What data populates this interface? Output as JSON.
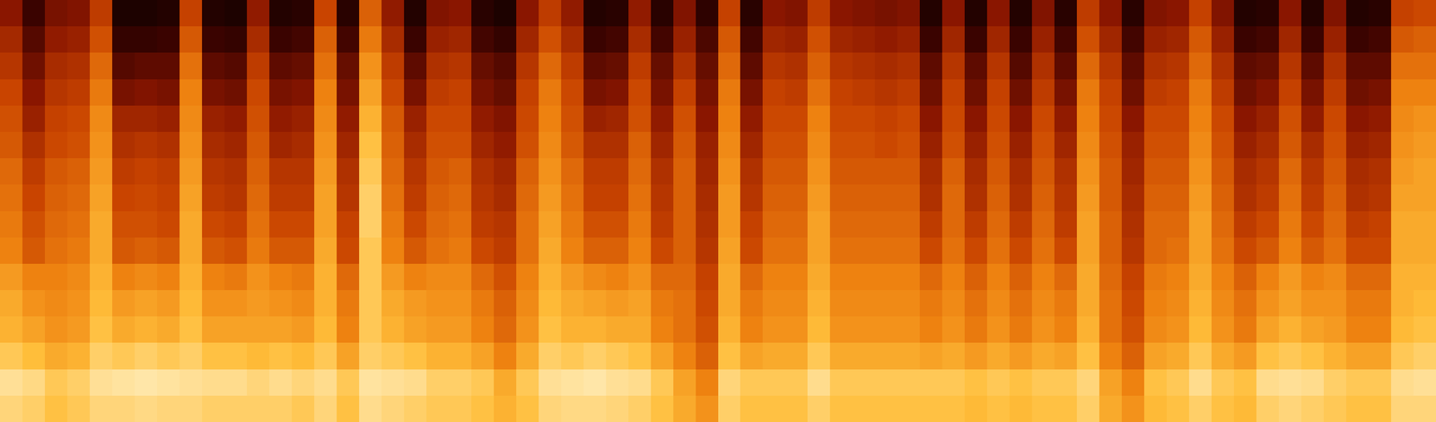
{
  "chart_data": {
    "type": "heatmap",
    "tick_labels": false,
    "zlim": [
      0,
      100
    ],
    "z": [
      [
        38,
        45,
        50,
        55,
        58,
        60,
        64,
        66,
        68,
        70,
        76,
        80,
        82,
        88,
        95,
        92
      ],
      [
        20,
        26,
        32,
        38,
        42,
        48,
        52,
        55,
        58,
        60,
        70,
        74,
        78,
        85,
        93,
        90
      ],
      [
        34,
        40,
        46,
        50,
        54,
        56,
        60,
        62,
        64,
        66,
        70,
        72,
        74,
        80,
        88,
        86
      ],
      [
        36,
        42,
        48,
        52,
        56,
        58,
        62,
        64,
        66,
        68,
        72,
        74,
        76,
        82,
        90,
        88
      ],
      [
        52,
        58,
        64,
        68,
        72,
        74,
        76,
        78,
        80,
        80,
        82,
        84,
        86,
        90,
        95,
        92
      ],
      [
        10,
        18,
        26,
        34,
        44,
        48,
        52,
        55,
        58,
        60,
        70,
        76,
        80,
        88,
        96,
        92
      ],
      [
        10,
        18,
        28,
        36,
        44,
        50,
        54,
        56,
        58,
        62,
        72,
        78,
        82,
        90,
        97,
        93
      ],
      [
        12,
        20,
        28,
        34,
        42,
        48,
        52,
        54,
        56,
        60,
        70,
        76,
        80,
        88,
        96,
        92
      ],
      [
        54,
        60,
        66,
        70,
        72,
        74,
        76,
        78,
        80,
        80,
        82,
        84,
        86,
        90,
        95,
        92
      ],
      [
        12,
        20,
        28,
        34,
        42,
        46,
        50,
        52,
        56,
        60,
        70,
        74,
        78,
        86,
        94,
        90
      ],
      [
        10,
        18,
        26,
        32,
        40,
        44,
        48,
        50,
        54,
        58,
        68,
        74,
        78,
        86,
        94,
        90
      ],
      [
        40,
        46,
        52,
        56,
        58,
        60,
        62,
        64,
        66,
        68,
        74,
        76,
        78,
        84,
        92,
        90
      ],
      [
        12,
        20,
        28,
        34,
        40,
        44,
        50,
        52,
        56,
        60,
        70,
        74,
        78,
        86,
        94,
        90
      ],
      [
        14,
        22,
        30,
        36,
        42,
        46,
        50,
        52,
        56,
        60,
        68,
        72,
        76,
        84,
        92,
        88
      ],
      [
        55,
        62,
        66,
        70,
        72,
        74,
        76,
        78,
        78,
        80,
        82,
        82,
        84,
        88,
        94,
        92
      ],
      [
        14,
        22,
        30,
        34,
        40,
        44,
        48,
        50,
        54,
        56,
        64,
        68,
        70,
        78,
        88,
        86
      ],
      [
        62,
        68,
        74,
        78,
        82,
        86,
        88,
        90,
        90,
        88,
        88,
        88,
        88,
        90,
        96,
        94
      ],
      [
        40,
        46,
        52,
        56,
        60,
        62,
        64,
        66,
        68,
        70,
        76,
        80,
        82,
        88,
        95,
        92
      ],
      [
        12,
        20,
        28,
        34,
        42,
        46,
        50,
        52,
        56,
        60,
        70,
        76,
        78,
        86,
        94,
        90
      ],
      [
        36,
        42,
        48,
        52,
        56,
        58,
        60,
        62,
        64,
        66,
        72,
        74,
        76,
        82,
        90,
        88
      ],
      [
        38,
        44,
        50,
        54,
        56,
        58,
        62,
        64,
        66,
        68,
        72,
        74,
        76,
        82,
        90,
        88
      ],
      [
        14,
        22,
        30,
        34,
        40,
        44,
        48,
        50,
        52,
        56,
        64,
        68,
        70,
        78,
        88,
        86
      ],
      [
        10,
        18,
        26,
        30,
        36,
        40,
        44,
        46,
        50,
        52,
        58,
        62,
        64,
        70,
        80,
        82
      ],
      [
        38,
        44,
        50,
        54,
        56,
        58,
        62,
        64,
        66,
        66,
        70,
        72,
        74,
        80,
        88,
        86
      ],
      [
        52,
        58,
        64,
        68,
        70,
        72,
        74,
        76,
        78,
        80,
        82,
        84,
        86,
        90,
        95,
        92
      ],
      [
        40,
        46,
        52,
        56,
        58,
        60,
        64,
        66,
        68,
        70,
        76,
        80,
        82,
        88,
        96,
        93
      ],
      [
        12,
        20,
        28,
        34,
        42,
        48,
        52,
        54,
        58,
        62,
        72,
        78,
        82,
        90,
        97,
        93
      ],
      [
        14,
        22,
        30,
        36,
        44,
        48,
        52,
        54,
        58,
        62,
        70,
        76,
        80,
        88,
        95,
        92
      ],
      [
        40,
        46,
        52,
        56,
        58,
        62,
        64,
        66,
        68,
        70,
        74,
        78,
        80,
        86,
        94,
        90
      ],
      [
        14,
        22,
        30,
        34,
        40,
        44,
        48,
        50,
        52,
        56,
        64,
        68,
        70,
        78,
        88,
        86
      ],
      [
        36,
        42,
        48,
        54,
        58,
        60,
        62,
        62,
        62,
        62,
        64,
        66,
        66,
        70,
        78,
        80
      ],
      [
        16,
        24,
        30,
        34,
        38,
        42,
        44,
        46,
        48,
        50,
        54,
        56,
        58,
        62,
        70,
        74
      ],
      [
        54,
        60,
        64,
        68,
        70,
        72,
        74,
        76,
        76,
        78,
        80,
        80,
        82,
        86,
        92,
        90
      ],
      [
        14,
        22,
        28,
        34,
        40,
        44,
        48,
        50,
        54,
        56,
        64,
        68,
        70,
        78,
        88,
        86
      ],
      [
        38,
        44,
        50,
        54,
        56,
        58,
        60,
        62,
        64,
        66,
        70,
        72,
        74,
        80,
        88,
        86
      ],
      [
        36,
        42,
        48,
        52,
        56,
        58,
        60,
        62,
        64,
        66,
        70,
        72,
        74,
        80,
        88,
        86
      ],
      [
        52,
        58,
        62,
        66,
        70,
        72,
        74,
        76,
        78,
        78,
        80,
        82,
        84,
        88,
        94,
        90
      ],
      [
        38,
        44,
        50,
        54,
        56,
        58,
        60,
        62,
        64,
        66,
        70,
        72,
        74,
        80,
        88,
        86
      ],
      [
        36,
        42,
        48,
        52,
        56,
        58,
        60,
        62,
        64,
        66,
        70,
        72,
        74,
        80,
        88,
        86
      ],
      [
        34,
        40,
        46,
        50,
        54,
        56,
        60,
        62,
        64,
        66,
        70,
        72,
        74,
        80,
        88,
        86
      ],
      [
        36,
        42,
        48,
        52,
        56,
        58,
        60,
        62,
        64,
        66,
        70,
        72,
        74,
        80,
        88,
        86
      ],
      [
        12,
        20,
        28,
        32,
        38,
        42,
        46,
        48,
        52,
        56,
        64,
        68,
        70,
        78,
        88,
        86
      ],
      [
        38,
        44,
        50,
        54,
        56,
        58,
        62,
        64,
        64,
        66,
        70,
        72,
        74,
        80,
        88,
        86
      ],
      [
        12,
        20,
        28,
        32,
        38,
        42,
        46,
        48,
        52,
        56,
        62,
        66,
        68,
        76,
        86,
        84
      ],
      [
        38,
        44,
        50,
        54,
        56,
        58,
        60,
        62,
        64,
        66,
        70,
        72,
        74,
        80,
        88,
        86
      ],
      [
        12,
        20,
        26,
        32,
        38,
        42,
        46,
        48,
        52,
        56,
        62,
        66,
        68,
        76,
        86,
        84
      ],
      [
        36,
        42,
        48,
        52,
        56,
        58,
        60,
        62,
        64,
        66,
        70,
        72,
        74,
        80,
        88,
        86
      ],
      [
        14,
        22,
        28,
        34,
        40,
        44,
        48,
        50,
        52,
        56,
        64,
        68,
        70,
        78,
        88,
        86
      ],
      [
        52,
        58,
        64,
        68,
        70,
        72,
        74,
        76,
        78,
        78,
        80,
        80,
        82,
        86,
        92,
        90
      ],
      [
        38,
        44,
        50,
        54,
        56,
        58,
        60,
        60,
        62,
        62,
        64,
        66,
        66,
        70,
        78,
        80
      ],
      [
        14,
        22,
        28,
        32,
        38,
        42,
        44,
        46,
        48,
        50,
        54,
        56,
        58,
        62,
        70,
        74
      ],
      [
        36,
        42,
        48,
        52,
        56,
        58,
        60,
        62,
        64,
        64,
        68,
        70,
        72,
        78,
        86,
        84
      ],
      [
        38,
        44,
        50,
        54,
        56,
        58,
        60,
        62,
        64,
        66,
        70,
        72,
        74,
        80,
        88,
        86
      ],
      [
        54,
        60,
        64,
        68,
        70,
        72,
        74,
        76,
        78,
        78,
        80,
        82,
        84,
        88,
        94,
        90
      ],
      [
        36,
        42,
        48,
        52,
        56,
        58,
        60,
        62,
        64,
        66,
        70,
        72,
        74,
        80,
        88,
        86
      ],
      [
        12,
        20,
        28,
        32,
        38,
        42,
        46,
        48,
        52,
        56,
        62,
        66,
        68,
        76,
        86,
        84
      ],
      [
        14,
        22,
        30,
        36,
        42,
        46,
        50,
        52,
        56,
        60,
        70,
        74,
        78,
        86,
        94,
        90
      ],
      [
        38,
        44,
        50,
        54,
        58,
        60,
        64,
        66,
        68,
        70,
        76,
        78,
        82,
        88,
        95,
        92
      ],
      [
        12,
        20,
        28,
        34,
        40,
        46,
        50,
        52,
        56,
        60,
        70,
        74,
        78,
        86,
        94,
        90
      ],
      [
        36,
        42,
        48,
        52,
        56,
        58,
        60,
        62,
        64,
        66,
        72,
        74,
        76,
        82,
        90,
        88
      ],
      [
        12,
        20,
        28,
        32,
        38,
        42,
        46,
        48,
        52,
        56,
        64,
        68,
        70,
        78,
        88,
        86
      ],
      [
        14,
        22,
        28,
        34,
        40,
        44,
        48,
        50,
        54,
        56,
        64,
        68,
        70,
        78,
        88,
        86
      ],
      [
        54,
        60,
        66,
        70,
        72,
        74,
        76,
        78,
        80,
        80,
        82,
        82,
        84,
        88,
        94,
        92
      ],
      [
        56,
        62,
        66,
        70,
        74,
        76,
        78,
        78,
        80,
        80,
        82,
        84,
        86,
        90,
        95,
        92
      ]
    ]
  }
}
